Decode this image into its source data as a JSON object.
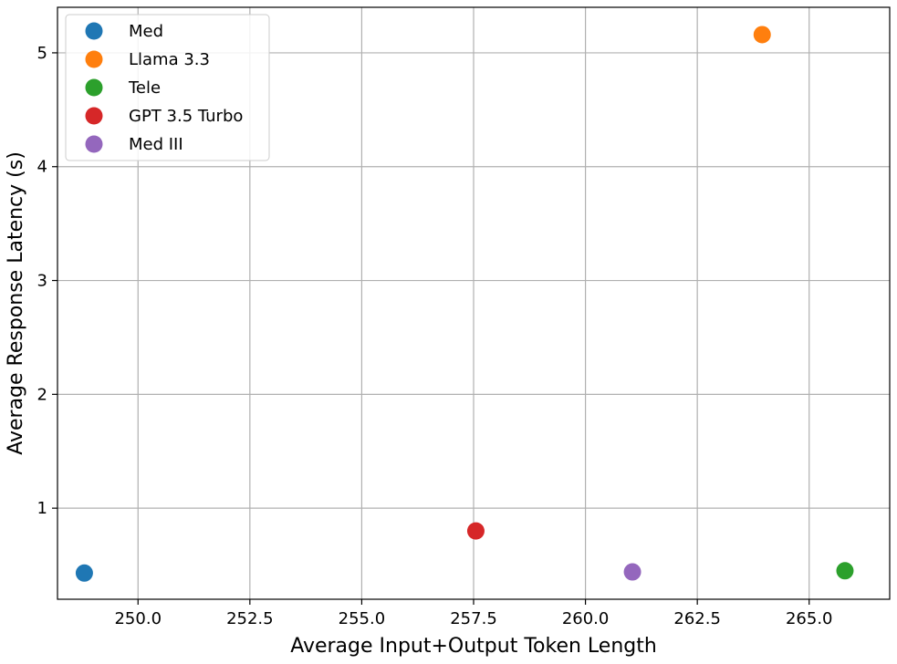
{
  "chart_data": {
    "type": "scatter",
    "title": "",
    "xlabel": "Average Input+Output Token Length",
    "ylabel": "Average Response Latency (s)",
    "xlim": [
      248.2,
      266.8
    ],
    "ylim": [
      0.2,
      5.4
    ],
    "xticks": [
      250.0,
      252.5,
      255.0,
      257.5,
      260.0,
      262.5,
      265.0
    ],
    "xtick_labels": [
      "250.0",
      "252.5",
      "255.0",
      "257.5",
      "260.0",
      "262.5",
      "265.0"
    ],
    "yticks": [
      1,
      2,
      3,
      4,
      5
    ],
    "ytick_labels": [
      "1",
      "2",
      "3",
      "4",
      "5"
    ],
    "grid": true,
    "legend_position": "top-left",
    "series": [
      {
        "name": "Med",
        "color": "#1f77b4",
        "x": 248.8,
        "y": 0.43
      },
      {
        "name": "Llama 3.3",
        "color": "#ff7f0e",
        "x": 263.95,
        "y": 5.16
      },
      {
        "name": "Tele",
        "color": "#2ca02c",
        "x": 265.8,
        "y": 0.45
      },
      {
        "name": "GPT 3.5 Turbo",
        "color": "#d62728",
        "x": 257.55,
        "y": 0.8
      },
      {
        "name": "Med III",
        "color": "#9467bd",
        "x": 261.05,
        "y": 0.44
      }
    ]
  }
}
